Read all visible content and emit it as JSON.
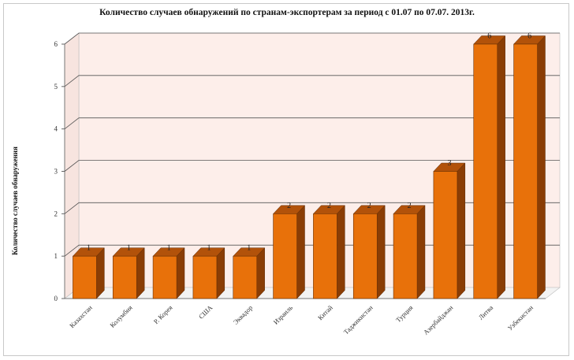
{
  "chart_data": {
    "type": "bar",
    "title": "Количество случаев обнаружений по странам-экспортерам за период с 01.07 по 07.07. 2013г.",
    "ylabel": "Количество случаев обнаружения",
    "xlabel": "",
    "categories": [
      "Казахстан",
      "Колумбия",
      "Р. Корея",
      "США",
      "Эквадор",
      "Израиль",
      "Китай",
      "Таджикистан",
      "Турция",
      "Азербайджан",
      "Литва",
      "Узбекистан"
    ],
    "values": [
      1,
      1,
      1,
      1,
      1,
      2,
      2,
      2,
      2,
      3,
      6,
      6
    ],
    "ylim": [
      0,
      6
    ],
    "yticks": [
      0,
      1,
      2,
      3,
      4,
      5,
      6
    ],
    "grid": true,
    "style": "3d",
    "colors": {
      "bar_front": "#e8710a",
      "bar_side": "#8a3d05",
      "bar_top": "#b2520a",
      "wall": "#fdeeea",
      "grid": "#555555"
    }
  }
}
